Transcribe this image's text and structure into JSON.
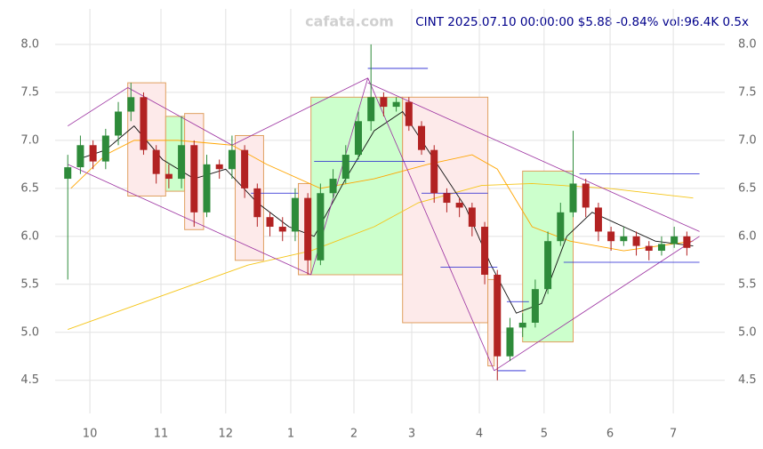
{
  "chart_data": {
    "type": "candlestick",
    "title": "CINT 2025.07.10 00:00:00 $5.88 -0.84% vol:96.4K 0.5x",
    "watermark": "cafata.com",
    "up_color": "#2e8b3a",
    "down_color": "#b22222",
    "x": [
      0,
      4,
      8,
      12,
      16,
      20,
      24,
      28,
      32,
      36,
      40,
      44,
      48,
      52,
      56,
      60,
      64,
      68,
      72,
      76,
      80,
      84,
      88,
      92,
      96,
      100,
      104,
      108,
      112,
      116,
      120,
      124,
      128,
      132,
      136,
      140,
      144,
      148,
      152,
      156,
      160,
      164,
      168,
      172,
      176,
      180,
      184,
      188,
      192,
      196
    ],
    "open": [
      6.6,
      6.72,
      6.95,
      6.78,
      7.05,
      7.3,
      7.45,
      6.9,
      6.65,
      6.6,
      6.95,
      6.25,
      6.75,
      6.7,
      6.9,
      6.5,
      6.2,
      6.1,
      6.05,
      6.4,
      5.75,
      6.45,
      6.6,
      6.85,
      7.2,
      7.45,
      7.35,
      7.4,
      7.15,
      6.9,
      6.45,
      6.35,
      6.3,
      6.1,
      5.6,
      4.75,
      5.05,
      5.1,
      5.45,
      5.95,
      6.25,
      6.55,
      6.3,
      6.05,
      5.95,
      6.0,
      5.9,
      5.85,
      5.92,
      6.0
    ],
    "high": [
      6.85,
      7.05,
      7.0,
      7.12,
      7.4,
      7.6,
      7.5,
      6.95,
      6.75,
      7.25,
      7.0,
      6.85,
      6.8,
      7.05,
      6.95,
      6.55,
      6.25,
      6.2,
      6.5,
      6.45,
      6.55,
      6.7,
      6.95,
      7.3,
      8.0,
      7.5,
      7.45,
      7.45,
      7.2,
      6.95,
      6.5,
      6.4,
      6.35,
      6.15,
      5.65,
      5.15,
      5.2,
      5.55,
      6.05,
      6.35,
      7.1,
      6.6,
      6.35,
      6.1,
      6.1,
      6.05,
      5.95,
      6.0,
      6.1,
      6.05
    ],
    "low": [
      5.55,
      6.65,
      6.7,
      6.7,
      6.95,
      7.2,
      6.85,
      6.55,
      6.5,
      6.5,
      6.1,
      6.2,
      6.6,
      6.6,
      6.4,
      6.1,
      6.0,
      5.95,
      5.95,
      5.6,
      5.7,
      6.4,
      6.55,
      6.8,
      7.1,
      7.25,
      7.3,
      7.1,
      6.85,
      6.35,
      6.25,
      6.2,
      6.0,
      5.5,
      4.5,
      4.7,
      4.95,
      5.05,
      5.4,
      5.9,
      6.2,
      6.2,
      5.95,
      5.85,
      5.9,
      5.8,
      5.75,
      5.8,
      5.88,
      5.8
    ],
    "close": [
      6.72,
      6.95,
      6.78,
      7.05,
      7.3,
      7.45,
      6.9,
      6.65,
      6.6,
      6.95,
      6.25,
      6.75,
      6.7,
      6.9,
      6.5,
      6.2,
      6.1,
      6.05,
      6.4,
      5.75,
      6.45,
      6.6,
      6.85,
      7.2,
      7.45,
      7.35,
      7.4,
      7.15,
      6.9,
      6.45,
      6.35,
      6.3,
      6.1,
      5.6,
      4.75,
      5.05,
      5.1,
      5.45,
      5.95,
      6.25,
      6.55,
      6.3,
      6.05,
      5.95,
      6.0,
      5.9,
      5.85,
      5.92,
      6.0,
      5.88
    ],
    "lines": [
      {
        "color": "#f5c518",
        "x": [
          0,
          57,
          77,
          97,
          111,
          131,
          147,
          171,
          198
        ],
        "values": [
          5.03,
          5.7,
          5.85,
          6.1,
          6.35,
          6.53,
          6.55,
          6.5,
          6.4
        ]
      },
      {
        "color": "#ffa500",
        "x": [
          1,
          12,
          21,
          35,
          52,
          63,
          80,
          97,
          114,
          128,
          136,
          147,
          159,
          176,
          198
        ],
        "values": [
          6.5,
          6.85,
          7.0,
          7.0,
          6.95,
          6.75,
          6.5,
          6.6,
          6.75,
          6.85,
          6.7,
          6.1,
          5.95,
          5.85,
          5.95
        ]
      },
      {
        "color": "#111111",
        "x": [
          3,
          12,
          21,
          30,
          40,
          50,
          60,
          70,
          78,
          88,
          97,
          106,
          116,
          126,
          134,
          142,
          150,
          158,
          166,
          176,
          186,
          198
        ],
        "values": [
          6.8,
          6.9,
          7.15,
          6.8,
          6.6,
          6.7,
          6.35,
          6.1,
          6.0,
          6.6,
          7.1,
          7.3,
          6.8,
          6.3,
          5.7,
          5.2,
          5.3,
          6.0,
          6.25,
          6.1,
          5.95,
          5.9
        ]
      }
    ],
    "boxes": [
      {
        "color": "pink",
        "x": [
          19,
          31
        ],
        "y": [
          6.42,
          7.6
        ]
      },
      {
        "color": "green",
        "x": [
          31,
          37
        ],
        "y": [
          6.47,
          7.25
        ]
      },
      {
        "color": "pink",
        "x": [
          37,
          43
        ],
        "y": [
          6.07,
          7.28
        ]
      },
      {
        "color": "pink",
        "x": [
          53,
          62
        ],
        "y": [
          5.75,
          7.05
        ]
      },
      {
        "color": "pink",
        "x": [
          73,
          77
        ],
        "y": [
          5.6,
          6.55
        ]
      },
      {
        "color": "green",
        "x": [
          77,
          106
        ],
        "y": [
          5.6,
          7.45
        ]
      },
      {
        "color": "pink",
        "x": [
          106,
          133
        ],
        "y": [
          5.1,
          7.45
        ]
      },
      {
        "color": "pink",
        "x": [
          133,
          135
        ],
        "y": [
          4.65,
          5.55
        ]
      },
      {
        "color": "green",
        "x": [
          144,
          160
        ],
        "y": [
          4.9,
          6.68
        ]
      }
    ],
    "trend_lines": [
      {
        "x": [
          0,
          19
        ],
        "y": [
          7.15,
          7.55
        ]
      },
      {
        "x": [
          0,
          77
        ],
        "y": [
          6.75,
          5.6
        ]
      },
      {
        "x": [
          19,
          52
        ],
        "y": [
          7.55,
          6.95
        ]
      },
      {
        "x": [
          52,
          95
        ],
        "y": [
          6.95,
          7.65
        ]
      },
      {
        "x": [
          77,
          95
        ],
        "y": [
          5.6,
          7.65
        ]
      },
      {
        "x": [
          95,
          135
        ],
        "y": [
          7.65,
          4.6
        ]
      },
      {
        "x": [
          95,
          200
        ],
        "y": [
          7.6,
          6.05
        ]
      },
      {
        "x": [
          135,
          200
        ],
        "y": [
          4.6,
          6.0
        ]
      }
    ],
    "levels": [
      {
        "x": [
          95,
          114
        ],
        "y": 7.75
      },
      {
        "x": [
          58,
          73
        ],
        "y": 6.45
      },
      {
        "x": [
          78,
          113
        ],
        "y": 6.78
      },
      {
        "x": [
          112,
          133
        ],
        "y": 6.45
      },
      {
        "x": [
          118,
          136
        ],
        "y": 5.68
      },
      {
        "x": [
          136,
          145
        ],
        "y": 4.6
      },
      {
        "x": [
          139,
          146
        ],
        "y": 5.32
      },
      {
        "x": [
          162,
          200
        ],
        "y": 6.65
      },
      {
        "x": [
          157,
          200
        ],
        "y": 5.73
      }
    ],
    "xlim": [
      -4,
      208
    ],
    "ylim": [
      4.34,
      8.37
    ],
    "yticks": [
      {
        "value": 4.5,
        "label": "4.5"
      },
      {
        "value": 5,
        "label": "5.0"
      },
      {
        "value": 5.5,
        "label": "5.5"
      },
      {
        "value": 6,
        "label": "6.0"
      },
      {
        "value": 6.5,
        "label": "6.5"
      },
      {
        "value": 7,
        "label": "7.0"
      },
      {
        "value": 7.5,
        "label": "7.5"
      },
      {
        "value": 8,
        "label": "8.0"
      }
    ],
    "xticks": [
      {
        "value": 7,
        "label": "10"
      },
      {
        "value": 29.5,
        "label": "11"
      },
      {
        "value": 50,
        "label": "12"
      },
      {
        "value": 70.6,
        "label": "1"
      },
      {
        "value": 90.6,
        "label": "2"
      },
      {
        "value": 108.9,
        "label": "3"
      },
      {
        "value": 130.3,
        "label": "4"
      },
      {
        "value": 150.8,
        "label": "5"
      },
      {
        "value": 171.7,
        "label": "6"
      },
      {
        "value": 191.7,
        "label": "7"
      }
    ],
    "grid": true
  }
}
